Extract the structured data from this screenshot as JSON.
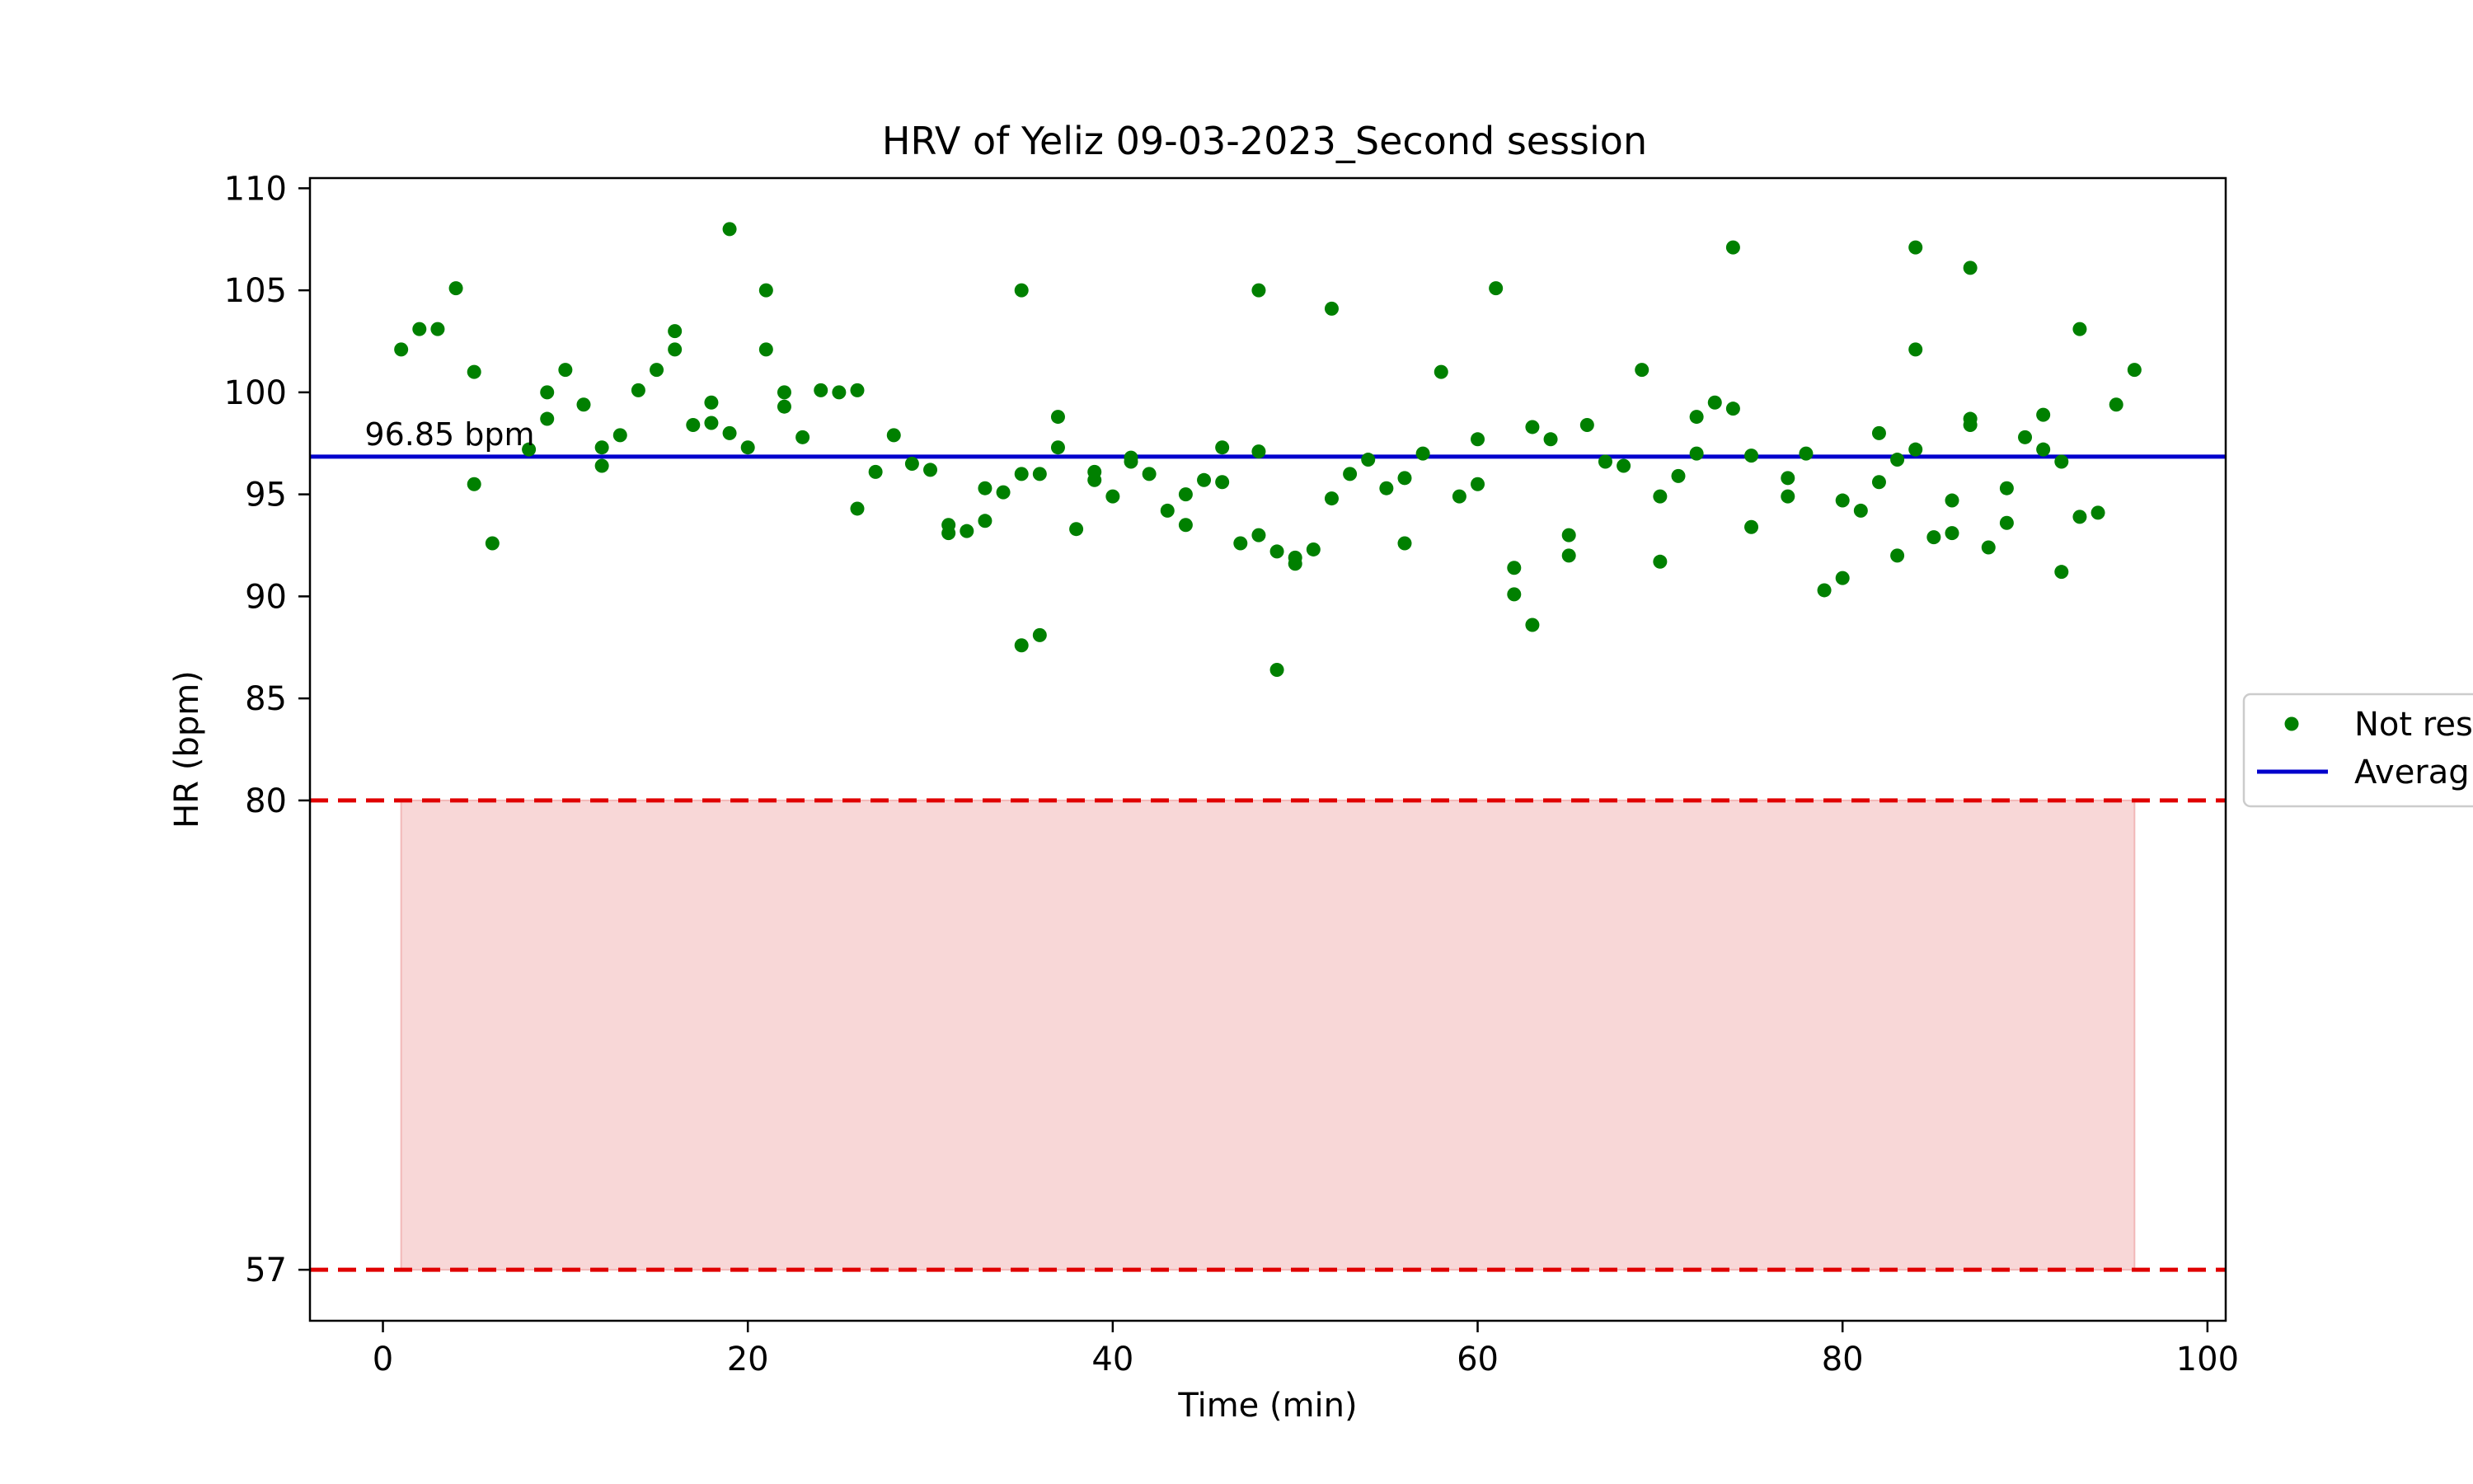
{
  "chart_data": {
    "type": "scatter",
    "title": "HRV of Yeliz 09-03-2023_Second session",
    "xlabel": "Time (min)",
    "ylabel": "HR (bpm)",
    "xlim": [
      -4,
      101
    ],
    "ylim": [
      54.5,
      110.5
    ],
    "xticks": [
      0,
      20,
      40,
      60,
      80,
      100
    ],
    "yticks": [
      57,
      80,
      85,
      90,
      95,
      100,
      105,
      110
    ],
    "grid": false,
    "legend_position": "center-right (outside)",
    "legend": [
      {
        "label": "Not res",
        "marker": "dot",
        "color": "#008000"
      },
      {
        "label": "Averag",
        "marker": "line",
        "color": "#0000cc"
      }
    ],
    "average": {
      "value": 96.85,
      "annotation": "96.85 bpm",
      "color": "#0000cc"
    },
    "thresholds": [
      {
        "value": 80,
        "color": "#e00000",
        "style": "dashed"
      },
      {
        "value": 57,
        "color": "#e00000",
        "style": "dashed"
      }
    ],
    "shaded_region": {
      "x": [
        1,
        96
      ],
      "y": [
        57,
        80
      ],
      "color": "#f8d7d7"
    },
    "series": [
      {
        "color": "#008000",
        "points": [
          [
            1,
            102.1
          ],
          [
            2,
            103.1
          ],
          [
            3,
            103.1
          ],
          [
            4,
            105.1
          ],
          [
            5,
            101.0
          ],
          [
            5,
            95.5
          ],
          [
            6,
            92.6
          ],
          [
            8,
            97.2
          ],
          [
            9,
            98.7
          ],
          [
            9,
            100.0
          ],
          [
            10,
            101.1
          ],
          [
            11,
            99.4
          ],
          [
            12,
            97.3
          ],
          [
            12,
            96.4
          ],
          [
            13,
            97.9
          ],
          [
            14,
            100.1
          ],
          [
            15,
            101.1
          ],
          [
            16,
            103.0
          ],
          [
            16,
            102.1
          ],
          [
            17,
            98.4
          ],
          [
            18,
            98.5
          ],
          [
            18,
            99.5
          ],
          [
            19,
            108.0
          ],
          [
            19,
            98.0
          ],
          [
            20,
            97.3
          ],
          [
            21,
            105.0
          ],
          [
            21,
            102.1
          ],
          [
            22,
            100.0
          ],
          [
            22,
            99.3
          ],
          [
            23,
            97.8
          ],
          [
            24,
            100.1
          ],
          [
            25,
            100.0
          ],
          [
            26,
            100.1
          ],
          [
            26,
            94.3
          ],
          [
            27,
            96.1
          ],
          [
            28,
            97.9
          ],
          [
            29,
            96.5
          ],
          [
            30,
            96.2
          ],
          [
            31,
            93.5
          ],
          [
            31,
            93.1
          ],
          [
            32,
            93.2
          ],
          [
            33,
            95.3
          ],
          [
            33,
            93.7
          ],
          [
            34,
            95.1
          ],
          [
            35,
            105.0
          ],
          [
            35,
            96.0
          ],
          [
            35,
            87.6
          ],
          [
            36,
            96.0
          ],
          [
            36,
            88.1
          ],
          [
            37,
            98.8
          ],
          [
            37,
            97.3
          ],
          [
            38,
            93.3
          ],
          [
            39,
            96.1
          ],
          [
            39,
            95.7
          ],
          [
            40,
            94.9
          ],
          [
            41,
            96.8
          ],
          [
            41,
            96.6
          ],
          [
            42,
            96.0
          ],
          [
            43,
            94.2
          ],
          [
            44,
            95.0
          ],
          [
            44,
            93.5
          ],
          [
            45,
            95.7
          ],
          [
            46,
            97.3
          ],
          [
            46,
            95.6
          ],
          [
            47,
            92.6
          ],
          [
            48,
            105.0
          ],
          [
            48,
            97.1
          ],
          [
            48,
            93.0
          ],
          [
            49,
            92.2
          ],
          [
            49,
            86.4
          ],
          [
            50,
            91.9
          ],
          [
            50,
            91.6
          ],
          [
            51,
            92.3
          ],
          [
            52,
            104.1
          ],
          [
            52,
            94.8
          ],
          [
            53,
            96.0
          ],
          [
            54,
            96.7
          ],
          [
            55,
            95.3
          ],
          [
            56,
            95.8
          ],
          [
            56,
            92.6
          ],
          [
            57,
            97.0
          ],
          [
            58,
            101.0
          ],
          [
            59,
            94.9
          ],
          [
            60,
            97.7
          ],
          [
            60,
            95.5
          ],
          [
            61,
            105.1
          ],
          [
            62,
            91.4
          ],
          [
            62,
            90.1
          ],
          [
            63,
            98.3
          ],
          [
            63,
            88.6
          ],
          [
            64,
            97.7
          ],
          [
            65,
            93.0
          ],
          [
            65,
            92.0
          ],
          [
            66,
            98.4
          ],
          [
            67,
            96.6
          ],
          [
            68,
            96.4
          ],
          [
            69,
            101.1
          ],
          [
            70,
            94.9
          ],
          [
            70,
            91.7
          ],
          [
            71,
            95.9
          ],
          [
            72,
            98.8
          ],
          [
            72,
            97.0
          ],
          [
            73,
            99.5
          ],
          [
            74,
            107.1
          ],
          [
            74,
            99.2
          ],
          [
            75,
            96.9
          ],
          [
            75,
            93.4
          ],
          [
            77,
            95.8
          ],
          [
            77,
            94.9
          ],
          [
            78,
            97.0
          ],
          [
            79,
            90.3
          ],
          [
            80,
            94.7
          ],
          [
            80,
            90.9
          ],
          [
            81,
            94.2
          ],
          [
            82,
            98.0
          ],
          [
            82,
            95.6
          ],
          [
            83,
            96.7
          ],
          [
            83,
            92.0
          ],
          [
            84,
            107.1
          ],
          [
            84,
            102.1
          ],
          [
            84,
            97.2
          ],
          [
            85,
            92.9
          ],
          [
            86,
            94.7
          ],
          [
            86,
            93.1
          ],
          [
            87,
            106.1
          ],
          [
            87,
            98.7
          ],
          [
            87,
            98.4
          ],
          [
            88,
            92.4
          ],
          [
            89,
            95.3
          ],
          [
            89,
            93.6
          ],
          [
            90,
            97.8
          ],
          [
            91,
            98.9
          ],
          [
            91,
            97.2
          ],
          [
            92,
            96.6
          ],
          [
            92,
            91.2
          ],
          [
            93,
            103.1
          ],
          [
            93,
            93.9
          ],
          [
            94,
            94.1
          ],
          [
            95,
            99.4
          ],
          [
            96,
            101.1
          ]
        ]
      }
    ]
  }
}
